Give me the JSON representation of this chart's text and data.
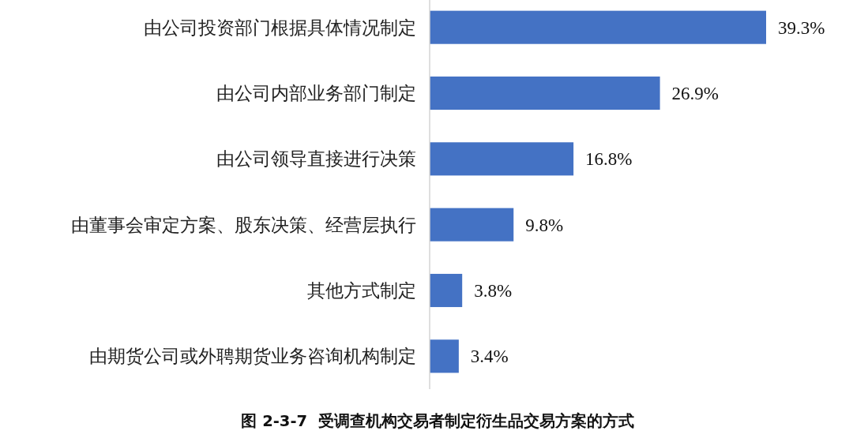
{
  "chart_data": {
    "type": "bar",
    "orientation": "horizontal",
    "title": "图 2-3-7  受调查机构交易者制定衍生品交易方案的方式",
    "categories": [
      "由公司投资部门根据具体情况制定",
      "由公司内部业务部门制定",
      "由公司领导直接进行决策",
      "由董事会审定方案、股东决策、经营层执行",
      "其他方式制定",
      "由期货公司或外聘期货业务咨询机构制定"
    ],
    "values": [
      39.3,
      26.9,
      16.8,
      9.8,
      3.8,
      3.4
    ],
    "value_labels": [
      "39.3%",
      "26.9%",
      "16.8%",
      "9.8%",
      "3.8%",
      "3.4%"
    ],
    "color": "#4472c4"
  }
}
